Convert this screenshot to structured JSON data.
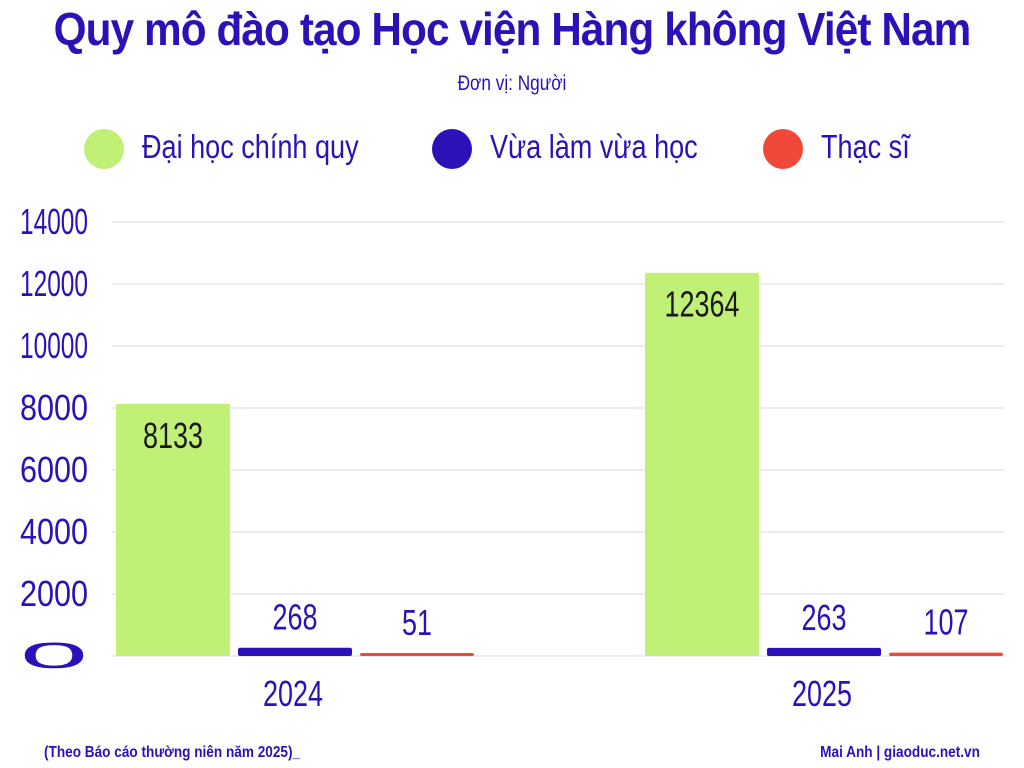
{
  "title": "Quy mô đào tạo Học viện Hàng không Việt Nam",
  "subtitle": "Đơn vị: Người",
  "colors": {
    "title": "#2a12b8",
    "grid": "#d8d8e8"
  },
  "footer": {
    "source": "(Theo Báo cáo thường niên năm 2025)_",
    "credit": "Mai Anh |  giaoduc.net.vn"
  },
  "chart_data": {
    "type": "bar",
    "title": "Quy mô đào tạo Học viện Hàng không Việt Nam",
    "subtitle": "Đơn vị: Người",
    "categories": [
      "2024",
      "2025"
    ],
    "series": [
      {
        "name": "Đại học chính quy",
        "color": "#c0f075",
        "values": [
          8133,
          12364
        ]
      },
      {
        "name": "Vừa làm vừa học",
        "color": "#2a12b8",
        "values": [
          268,
          263
        ]
      },
      {
        "name": "Thạc sĩ",
        "color": "#f2483a",
        "values": [
          51,
          107
        ]
      }
    ],
    "ylim": [
      0,
      14000
    ],
    "yticks": [
      0,
      2000,
      4000,
      6000,
      8000,
      10000,
      12000,
      14000
    ],
    "grid": true,
    "legend": "top",
    "data_labels": true
  }
}
